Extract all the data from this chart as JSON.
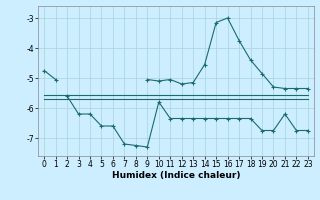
{
  "xlabel": "Humidex (Indice chaleur)",
  "background_color": "#cceeff",
  "grid_color": "#aad4d4",
  "line_color": "#1a6b6b",
  "xlim": [
    -0.5,
    23.5
  ],
  "ylim": [
    -7.6,
    -2.6
  ],
  "yticks": [
    -7,
    -6,
    -5,
    -4,
    -3
  ],
  "xticks": [
    0,
    1,
    2,
    3,
    4,
    5,
    6,
    7,
    8,
    9,
    10,
    11,
    12,
    13,
    14,
    15,
    16,
    17,
    18,
    19,
    20,
    21,
    22,
    23
  ],
  "series1_x": [
    0,
    1,
    2,
    3,
    4,
    5,
    6,
    7,
    8,
    9,
    10,
    11,
    12,
    13,
    14,
    15,
    16,
    17,
    18,
    19,
    20,
    21,
    22,
    23
  ],
  "series1_y": [
    -4.75,
    -5.05,
    null,
    null,
    null,
    null,
    null,
    null,
    null,
    -5.05,
    -5.1,
    -5.05,
    -5.2,
    -5.15,
    -4.55,
    -3.15,
    -3.0,
    -3.75,
    -4.4,
    -4.85,
    -5.3,
    -5.35,
    -5.35,
    -5.35
  ],
  "series2_x": [
    0,
    1,
    2,
    3,
    4,
    5,
    6,
    7,
    8,
    9,
    10,
    11,
    12,
    13,
    14,
    15,
    16,
    17,
    18,
    19,
    20,
    21,
    22,
    23
  ],
  "series2_y": [
    -5.55,
    -5.55,
    -5.55,
    -5.55,
    -5.55,
    -5.55,
    -5.55,
    -5.55,
    -5.55,
    -5.55,
    -5.55,
    -5.55,
    -5.55,
    -5.55,
    -5.55,
    -5.55,
    -5.55,
    -5.55,
    -5.55,
    -5.55,
    -5.55,
    -5.55,
    -5.55,
    -5.55
  ],
  "series3_x": [
    2,
    3,
    4,
    5,
    6,
    7,
    8,
    9,
    10,
    11,
    12,
    13,
    14,
    15,
    16,
    17,
    18,
    19,
    20,
    21,
    22,
    23
  ],
  "series3_y": [
    -5.6,
    -6.2,
    -6.2,
    -6.6,
    -6.6,
    -7.2,
    -7.25,
    -7.3,
    -5.8,
    -6.35,
    -6.35,
    -6.35,
    -6.35,
    -6.35,
    -6.35,
    -6.35,
    -6.35,
    -6.75,
    -6.75,
    -6.2,
    -6.75,
    -6.75
  ],
  "series4_x": [
    0,
    1,
    2,
    3,
    4,
    5,
    6,
    7,
    8,
    9,
    10,
    11,
    12,
    13,
    14,
    15,
    16,
    17,
    18,
    19,
    20,
    21,
    22,
    23
  ],
  "series4_y": [
    -5.7,
    -5.7,
    -5.7,
    -5.7,
    -5.7,
    -5.7,
    -5.7,
    -5.7,
    -5.7,
    -5.7,
    -5.7,
    -5.7,
    -5.7,
    -5.7,
    -5.7,
    -5.7,
    -5.7,
    -5.7,
    -5.7,
    -5.7,
    -5.7,
    -5.7,
    -5.7,
    -5.7
  ]
}
